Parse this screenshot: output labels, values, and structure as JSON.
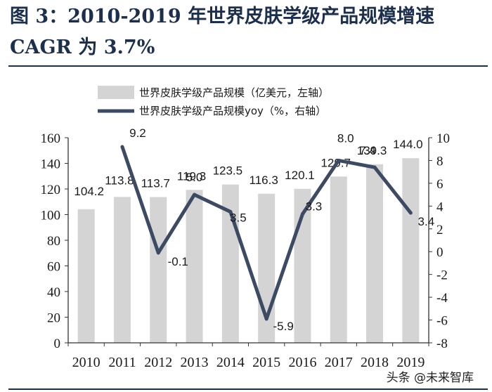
{
  "figure": {
    "title": "图 3：2010-2019 年世界皮肤学级产品规模增速 CAGR 为 3.7%"
  },
  "watermark": "头条 @未来智库",
  "colors": {
    "bar": "#d4d4d4",
    "line": "#3d4a63",
    "text": "#1a1a1a",
    "title": "#1c2f4d"
  },
  "chart_data": {
    "type": "bar",
    "categories": [
      "2010",
      "2011",
      "2012",
      "2013",
      "2014",
      "2015",
      "2016",
      "2017",
      "2018",
      "2019"
    ],
    "series": [
      {
        "name": "世界皮肤学级产品规模（亿美元，左轴）",
        "type": "bar",
        "axis": "left",
        "values": [
          104.2,
          113.8,
          113.7,
          119.3,
          123.5,
          116.3,
          120.1,
          129.7,
          139.3,
          144.0
        ],
        "labels": [
          "104.2",
          "113.8",
          "113.7",
          "119.3",
          "123.5",
          "116.3",
          "120.1",
          "129.7",
          "139.3",
          "144.0"
        ]
      },
      {
        "name": "世界皮肤学级产品规模yoy（%，右轴）",
        "type": "line",
        "axis": "right",
        "values": [
          null,
          9.2,
          -0.1,
          5.0,
          3.5,
          -5.9,
          3.3,
          8.0,
          7.4,
          3.4
        ],
        "labels": [
          "",
          "9.2",
          "-0.1",
          "5.0",
          "3.5",
          "-5.9",
          "3.3",
          "8.0",
          "7.4",
          "3.4"
        ]
      }
    ],
    "y_left": {
      "range": [
        0,
        160
      ],
      "ticks": [
        "0",
        "20",
        "40",
        "60",
        "80",
        "100",
        "120",
        "140",
        "160"
      ]
    },
    "y_right": {
      "range": [
        -8,
        10
      ],
      "ticks": [
        "-8",
        "-6",
        "-4",
        "-2",
        "0",
        "2",
        "4",
        "6",
        "8",
        "10"
      ]
    },
    "grid": false,
    "legend_position": "top"
  }
}
